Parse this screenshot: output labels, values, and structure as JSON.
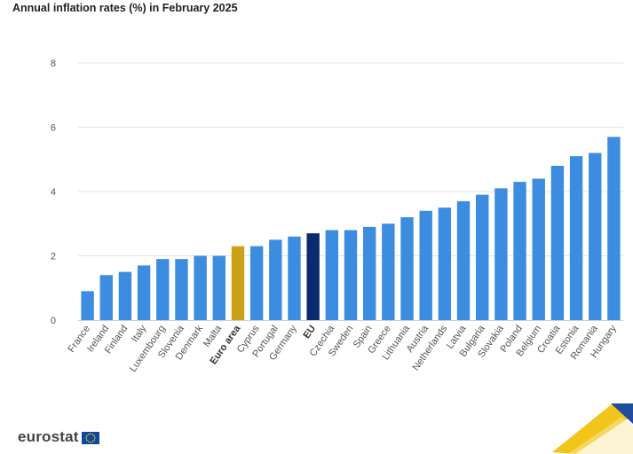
{
  "chart_data": {
    "type": "bar",
    "title": "Annual inflation rates (%) in February 2025",
    "xlabel": "",
    "ylabel": "",
    "ylim": [
      0,
      8
    ],
    "yticks": [
      0,
      2,
      4,
      6,
      8
    ],
    "grid": true,
    "categories": [
      "France",
      "Ireland",
      "Finland",
      "Italy",
      "Luxembourg",
      "Slovenia",
      "Denmark",
      "Malta",
      "Euro area",
      "Cyprus",
      "Portugal",
      "Germany",
      "EU",
      "Czechia",
      "Sweden",
      "Spain",
      "Greece",
      "Lithuania",
      "Austria",
      "Netherlands",
      "Latvia",
      "Bulgaria",
      "Slovakia",
      "Poland",
      "Belgium",
      "Croatia",
      "Estonia",
      "Romania",
      "Hungary"
    ],
    "values": [
      0.9,
      1.4,
      1.5,
      1.7,
      1.9,
      1.9,
      2.0,
      2.0,
      2.3,
      2.3,
      2.5,
      2.6,
      2.7,
      2.8,
      2.8,
      2.9,
      3.0,
      3.2,
      3.4,
      3.5,
      3.7,
      3.9,
      4.1,
      4.3,
      4.4,
      4.8,
      5.1,
      5.2,
      5.7
    ],
    "highlight": {
      "Euro area": "#c9a21a",
      "EU": "#0b2b6e"
    },
    "bold_categories": [
      "Euro area",
      "EU"
    ],
    "bar_color": "#3c8de0",
    "grid_color": "#e3e3e3",
    "axis_text_color": "#555555"
  },
  "footer": {
    "logo_text": "eurostat"
  }
}
